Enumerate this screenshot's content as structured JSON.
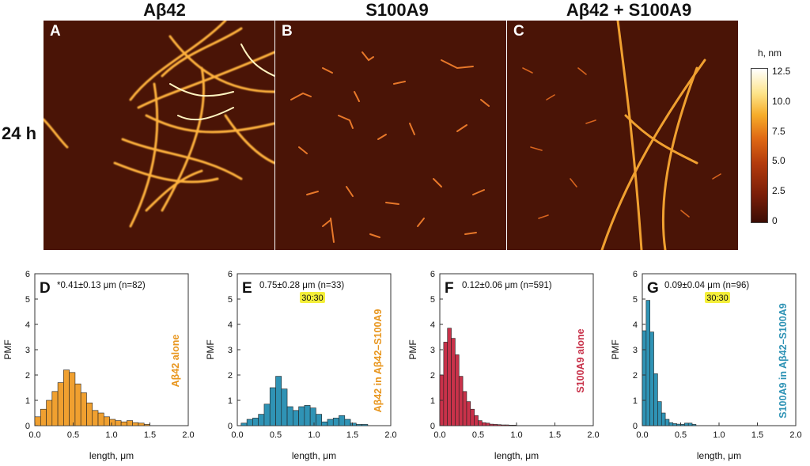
{
  "headers": {
    "col_a": "Aβ42",
    "col_b": "S100A9",
    "col_c": "Aβ42 + S100A9",
    "row": "24 h"
  },
  "afm_panels": [
    {
      "letter": "A"
    },
    {
      "letter": "B"
    },
    {
      "letter": "C"
    }
  ],
  "colorbar": {
    "title": "h, nm",
    "ticks": [
      "12.5",
      "10.0",
      "7.5",
      "5.0",
      "2.5",
      "0"
    ],
    "colors": [
      "#3b0d05",
      "#b23a0c",
      "#f6ad2a",
      "#ffffff"
    ]
  },
  "chart_data": [
    {
      "type": "bar",
      "panel": "D",
      "annotation": "0.41±0.13 μm (n=82)",
      "marker": "*",
      "highlight": "",
      "side_label": "Aβ42 alone",
      "side_label_color": "#e8961e",
      "color": "#f0a030",
      "ylabel": "PMF",
      "xlabel": "length, μm",
      "xlim": [
        0,
        2.0
      ],
      "ylim": [
        0,
        6
      ],
      "xticks": [
        "0.0",
        "0.5",
        "1.0",
        "1.5",
        "2.0"
      ],
      "yticks": [
        "0",
        "1",
        "2",
        "3",
        "4",
        "5",
        "6"
      ],
      "bin_width": 0.075,
      "bin_start": 0.0,
      "values": [
        0.35,
        0.65,
        1.0,
        1.35,
        1.7,
        2.2,
        2.1,
        1.65,
        1.3,
        0.9,
        0.6,
        0.5,
        0.35,
        0.25,
        0.2,
        0.15,
        0.2,
        0.12,
        0.1,
        0.05
      ]
    },
    {
      "type": "bar",
      "panel": "E",
      "annotation": "0.75±0.28 μm (n=33)",
      "marker": "",
      "highlight": "30:30",
      "side_label": "Aβ42 in Aβ42–S100A9",
      "side_label_color": "#e8961e",
      "color": "#2f93b5",
      "ylabel": "PMF",
      "xlabel": "length, μm",
      "xlim": [
        0,
        2.0
      ],
      "ylim": [
        0,
        6
      ],
      "xticks": [
        "0.0",
        "0.5",
        "1.0",
        "1.5",
        "2.0"
      ],
      "yticks": [
        "0",
        "1",
        "2",
        "3",
        "4",
        "5",
        "6"
      ],
      "bin_width": 0.075,
      "bin_start": 0.05,
      "values": [
        0.1,
        0.25,
        0.3,
        0.45,
        0.85,
        1.5,
        1.95,
        1.45,
        0.75,
        0.6,
        0.75,
        0.8,
        0.7,
        0.45,
        0.15,
        0.25,
        0.3,
        0.4,
        0.25,
        0.1,
        0.05,
        0.05
      ]
    },
    {
      "type": "bar",
      "panel": "F",
      "annotation": "0.12±0.06 μm (n=591)",
      "marker": "",
      "highlight": "",
      "side_label": "S100A9 alone",
      "side_label_color": "#c8324a",
      "color": "#c8324a",
      "ylabel": "PMF",
      "xlabel": "length, μm",
      "xlim": [
        0,
        2.0
      ],
      "ylim": [
        0,
        6
      ],
      "xticks": [
        "0.0",
        "0.5",
        "1.0",
        "1.5",
        "2.0"
      ],
      "yticks": [
        "0",
        "1",
        "2",
        "3",
        "4",
        "5",
        "6"
      ],
      "bin_width": 0.05,
      "bin_start": 0.0,
      "values": [
        2.0,
        3.3,
        3.85,
        3.45,
        2.8,
        1.95,
        1.35,
        0.95,
        0.65,
        0.4,
        0.2,
        0.12,
        0.1,
        0.06,
        0.05,
        0.04,
        0.03,
        0.03,
        0.02,
        0.02
      ]
    },
    {
      "type": "bar",
      "panel": "G",
      "annotation": "0.09±0.04 μm (n=96)",
      "marker": "",
      "highlight": "30:30",
      "side_label": "S100A9 in Aβ42–S100A9",
      "side_label_color": "#2f93b5",
      "color": "#2f93b5",
      "ylabel": "PMF",
      "xlabel": "length, μm",
      "xlim": [
        0,
        2.0
      ],
      "ylim": [
        0,
        6
      ],
      "xticks": [
        "0.0",
        "0.5",
        "1.0",
        "1.5",
        "2.0"
      ],
      "yticks": [
        "0",
        "1",
        "2",
        "3",
        "4",
        "5",
        "6"
      ],
      "bin_width": 0.05,
      "bin_start": 0.0,
      "values": [
        3.75,
        4.95,
        3.7,
        2.05,
        0.95,
        0.5,
        0.25,
        0.12,
        0.08,
        0.06,
        0.05,
        0.1,
        0.1,
        0.05
      ]
    }
  ]
}
